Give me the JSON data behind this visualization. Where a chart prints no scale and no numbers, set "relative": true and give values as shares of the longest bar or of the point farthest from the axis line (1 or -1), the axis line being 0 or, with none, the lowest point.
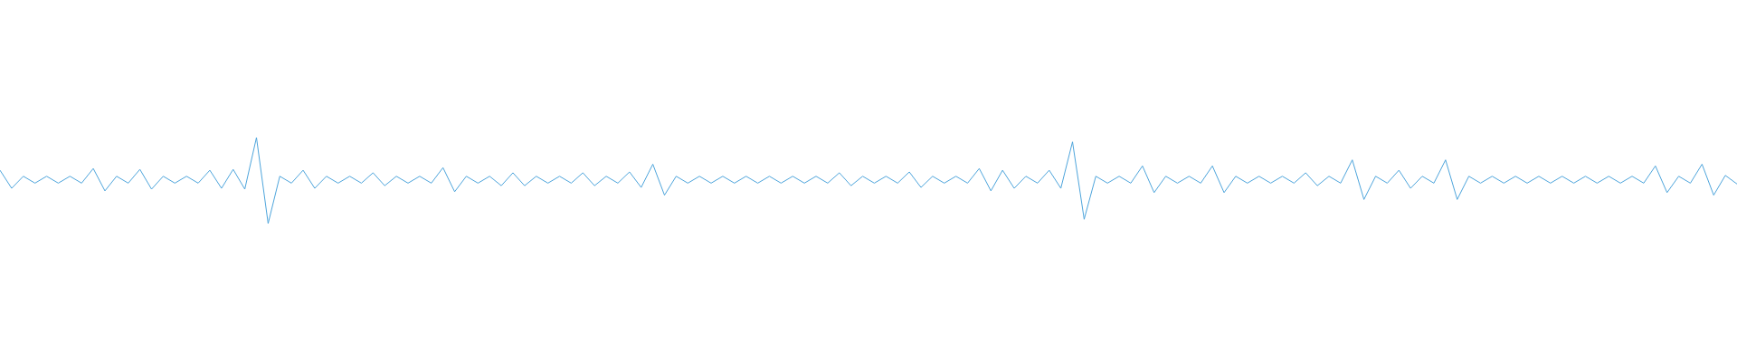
{
  "chart_data": {
    "type": "line",
    "relative": true,
    "categories": [
      null,
      null,
      null,
      null,
      null,
      null,
      null,
      null,
      null,
      null,
      null,
      null,
      null,
      null,
      null,
      null,
      null,
      null,
      null,
      null,
      null,
      null,
      null,
      null,
      null,
      null,
      null,
      null,
      null,
      null,
      null,
      null,
      null,
      null,
      null,
      null,
      null,
      null,
      null,
      null,
      null,
      null,
      null,
      null,
      null,
      null,
      null,
      null,
      null,
      null,
      null,
      null,
      null,
      null,
      null,
      null,
      null,
      null,
      null,
      null,
      null,
      null,
      null,
      null,
      null,
      null,
      null,
      null,
      null,
      null,
      null,
      null,
      null,
      null,
      null,
      null,
      null,
      null,
      null,
      null,
      null,
      null,
      null,
      null,
      null,
      null,
      null,
      null,
      null,
      null,
      null,
      null,
      null,
      null,
      null,
      null,
      null,
      null,
      null,
      null,
      null,
      null,
      null,
      null,
      null,
      null,
      null,
      null,
      null,
      null,
      null,
      null,
      null,
      null,
      null,
      null,
      null,
      null,
      null,
      null,
      null,
      null,
      null,
      null,
      null,
      null,
      null,
      null,
      null,
      null,
      null,
      null,
      null,
      null,
      null,
      null,
      null,
      null,
      null,
      null,
      null,
      null,
      null,
      null,
      null,
      null,
      null,
      null,
      null,
      null
    ],
    "series": [
      {
        "color": "#4ea5dc",
        "values": [
          0.62,
          0.41,
          0.55,
          0.47,
          0.55,
          0.47,
          0.55,
          0.47,
          0.64,
          0.38,
          0.55,
          0.47,
          0.63,
          0.4,
          0.55,
          0.47,
          0.55,
          0.47,
          0.62,
          0.41,
          0.63,
          0.4,
          1,
          0,
          0.55,
          0.47,
          0.62,
          0.41,
          0.55,
          0.47,
          0.55,
          0.47,
          0.59,
          0.44,
          0.55,
          0.47,
          0.55,
          0.47,
          0.65,
          0.37,
          0.55,
          0.47,
          0.55,
          0.44,
          0.59,
          0.44,
          0.55,
          0.47,
          0.55,
          0.47,
          0.59,
          0.44,
          0.55,
          0.47,
          0.6,
          0.42,
          0.69,
          0.33,
          0.55,
          0.47,
          0.55,
          0.47,
          0.55,
          0.47,
          0.55,
          0.47,
          0.55,
          0.47,
          0.55,
          0.47,
          0.55,
          0.47,
          0.59,
          0.44,
          0.55,
          0.47,
          0.55,
          0.47,
          0.6,
          0.42,
          0.55,
          0.47,
          0.55,
          0.47,
          0.64,
          0.38,
          0.62,
          0.41,
          0.55,
          0.47,
          0.62,
          0.41,
          0.95,
          0.05,
          0.55,
          0.47,
          0.55,
          0.47,
          0.67,
          0.36,
          0.55,
          0.47,
          0.55,
          0.47,
          0.67,
          0.36,
          0.55,
          0.47,
          0.55,
          0.47,
          0.55,
          0.47,
          0.59,
          0.44,
          0.55,
          0.47,
          0.74,
          0.28,
          0.55,
          0.47,
          0.62,
          0.41,
          0.55,
          0.47,
          0.74,
          0.28,
          0.55,
          0.47,
          0.55,
          0.47,
          0.55,
          0.47,
          0.55,
          0.47,
          0.55,
          0.47,
          0.55,
          0.47,
          0.55,
          0.47,
          0.55,
          0.47,
          0.67,
          0.36,
          0.55,
          0.47,
          0.69,
          0.33,
          0.56,
          0.46
        ]
      }
    ]
  }
}
